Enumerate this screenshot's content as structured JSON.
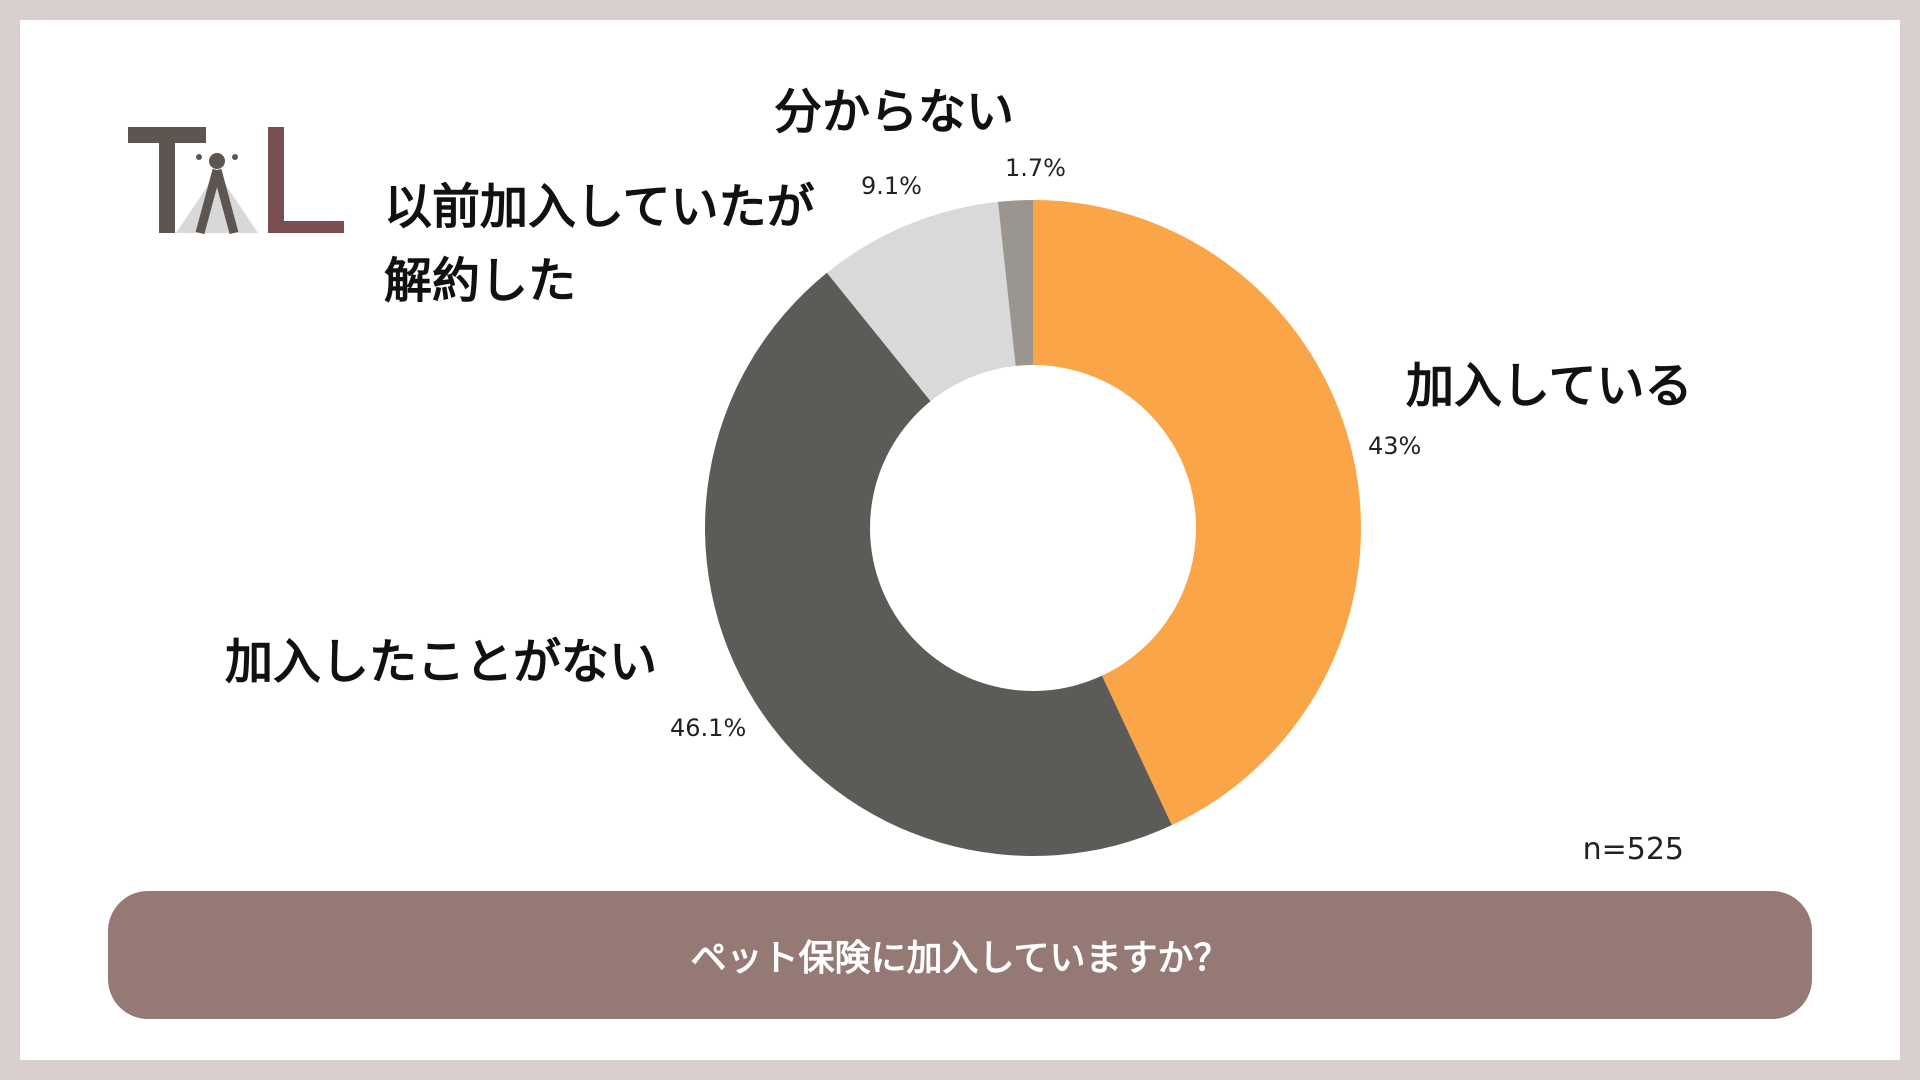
{
  "logo": {
    "text": "TAL",
    "colors": {
      "t": "#5d5550",
      "a_shape": "#d8d8d8",
      "a_lines": "#5d5550",
      "l": "#7a4f52"
    }
  },
  "chart_data": {
    "type": "pie",
    "donut": true,
    "categories": [
      "加入している",
      "加入したことがない",
      "以前加入していたが解約した",
      "分からない"
    ],
    "values": [
      43,
      46.1,
      9.1,
      1.7
    ],
    "value_labels": [
      "43%",
      "46.1%",
      "9.1%",
      "1.7%"
    ],
    "colors": [
      "#fba549",
      "#5c5b57",
      "#d9d9d9",
      "#9b9590"
    ],
    "start_angle": "12 o'clock",
    "direction": "clockwise",
    "title": "",
    "labels_multiline": {
      "以前加入していたが解約した": [
        "以前加入していたが",
        "解約した"
      ]
    }
  },
  "sample_size": "n=525",
  "question": "ペット保険に加入していますか？"
}
